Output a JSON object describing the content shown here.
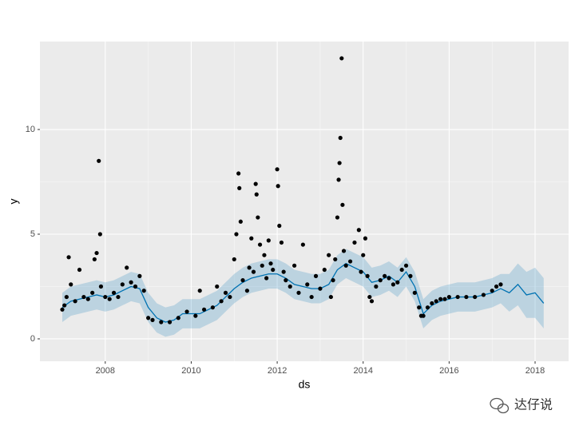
{
  "chart_data": {
    "type": "forecast",
    "xlabel": "ds",
    "ylabel": "y",
    "xlim": [
      2006.48,
      2018.78
    ],
    "xticks": [
      2008,
      2010,
      2012,
      2014,
      2016,
      2018
    ],
    "ylim": [
      -1.07,
      14.2
    ],
    "yticks": [
      0,
      5,
      10
    ],
    "grid": true,
    "watermark": "达仔说",
    "series": [
      {
        "type": "scatter",
        "color": "#000000",
        "x": [
          2007.0,
          2007.05,
          2007.1,
          2007.15,
          2007.2,
          2007.3,
          2007.4,
          2007.5,
          2007.6,
          2007.7,
          2007.75,
          2007.8,
          2007.85,
          2007.88,
          2007.9,
          2008.0,
          2008.1,
          2008.2,
          2008.3,
          2008.4,
          2008.5,
          2008.6,
          2008.7,
          2008.8,
          2008.9,
          2009.0,
          2009.1,
          2009.3,
          2009.5,
          2009.7,
          2009.9,
          2010.1,
          2010.2,
          2010.3,
          2010.5,
          2010.6,
          2010.7,
          2010.8,
          2010.9,
          2011.0,
          2011.05,
          2011.1,
          2011.12,
          2011.15,
          2011.2,
          2011.3,
          2011.35,
          2011.4,
          2011.45,
          2011.5,
          2011.52,
          2011.55,
          2011.6,
          2011.65,
          2011.7,
          2011.75,
          2011.8,
          2011.85,
          2011.9,
          2012.0,
          2012.02,
          2012.05,
          2012.1,
          2012.15,
          2012.2,
          2012.3,
          2012.4,
          2012.5,
          2012.6,
          2012.7,
          2012.8,
          2012.9,
          2013.0,
          2013.1,
          2013.2,
          2013.25,
          2013.3,
          2013.35,
          2013.4,
          2013.43,
          2013.45,
          2013.47,
          2013.5,
          2013.52,
          2013.55,
          2013.6,
          2013.7,
          2013.8,
          2013.9,
          2013.95,
          2014.0,
          2014.05,
          2014.1,
          2014.15,
          2014.2,
          2014.3,
          2014.4,
          2014.5,
          2014.6,
          2014.7,
          2014.8,
          2014.9,
          2015.0,
          2015.1,
          2015.2,
          2015.3,
          2015.35,
          2015.4,
          2015.5,
          2015.6,
          2015.7,
          2015.8,
          2015.9,
          2016.0,
          2016.2,
          2016.4,
          2016.6,
          2016.8,
          2017.0,
          2017.1,
          2017.2
        ],
        "values": [
          1.4,
          1.6,
          2.0,
          3.9,
          2.6,
          1.8,
          3.3,
          2.0,
          1.9,
          2.2,
          3.8,
          4.1,
          8.5,
          5.0,
          2.5,
          2.0,
          1.9,
          2.2,
          2.0,
          2.6,
          3.4,
          2.7,
          2.5,
          3.0,
          2.3,
          1.0,
          0.9,
          0.8,
          0.8,
          1.0,
          1.3,
          1.1,
          2.3,
          1.4,
          1.5,
          2.5,
          1.8,
          2.2,
          2.0,
          3.8,
          5.0,
          7.9,
          7.2,
          5.6,
          2.8,
          2.3,
          3.4,
          4.8,
          3.2,
          7.4,
          6.9,
          5.8,
          4.5,
          3.5,
          4.0,
          2.9,
          4.7,
          3.6,
          3.3,
          8.1,
          7.3,
          5.4,
          4.6,
          3.2,
          2.8,
          2.5,
          3.5,
          2.2,
          4.5,
          2.6,
          2.0,
          3.0,
          2.4,
          3.3,
          4.0,
          2.0,
          2.8,
          3.8,
          5.8,
          7.6,
          8.4,
          9.6,
          13.4,
          6.4,
          4.2,
          3.5,
          3.7,
          4.6,
          5.2,
          3.2,
          4.0,
          4.8,
          3.0,
          2.0,
          1.8,
          2.5,
          2.8,
          3.0,
          2.9,
          2.6,
          2.7,
          3.3,
          3.5,
          3.0,
          2.2,
          1.5,
          1.1,
          1.1,
          1.5,
          1.7,
          1.8,
          1.9,
          1.9,
          2.0,
          2.0,
          2.0,
          2.0,
          2.1,
          2.3,
          2.5,
          2.6
        ]
      },
      {
        "type": "line",
        "color": "#0072B2",
        "band_color": "#0072B2",
        "x": [
          2007.0,
          2007.2,
          2007.4,
          2007.6,
          2007.8,
          2008.0,
          2008.2,
          2008.4,
          2008.6,
          2008.8,
          2009.0,
          2009.2,
          2009.4,
          2009.6,
          2009.8,
          2010.0,
          2010.2,
          2010.4,
          2010.6,
          2010.8,
          2011.0,
          2011.2,
          2011.4,
          2011.6,
          2011.8,
          2012.0,
          2012.2,
          2012.4,
          2012.6,
          2012.8,
          2013.0,
          2013.2,
          2013.4,
          2013.6,
          2013.8,
          2014.0,
          2014.2,
          2014.4,
          2014.6,
          2014.8,
          2015.0,
          2015.2,
          2015.4,
          2015.6,
          2015.8,
          2016.0,
          2016.2,
          2016.4,
          2016.6,
          2016.8,
          2017.0,
          2017.2,
          2017.4,
          2017.6,
          2017.8,
          2018.0,
          2018.2
        ],
        "values": [
          1.5,
          1.8,
          1.9,
          2.0,
          2.1,
          2.0,
          2.1,
          2.3,
          2.5,
          2.4,
          1.5,
          1.0,
          0.8,
          0.9,
          1.2,
          1.2,
          1.2,
          1.4,
          1.6,
          2.0,
          2.4,
          2.7,
          2.9,
          3.0,
          3.1,
          3.1,
          2.9,
          2.6,
          2.5,
          2.4,
          2.4,
          2.6,
          3.3,
          3.6,
          3.4,
          3.2,
          2.7,
          2.8,
          3.0,
          2.7,
          3.2,
          2.5,
          1.2,
          1.6,
          1.8,
          1.9,
          2.0,
          2.0,
          2.0,
          2.1,
          2.2,
          2.4,
          2.2,
          2.6,
          2.1,
          2.2,
          1.7
        ],
        "lower": [
          0.8,
          1.1,
          1.2,
          1.3,
          1.4,
          1.3,
          1.4,
          1.6,
          1.8,
          1.7,
          0.8,
          0.3,
          0.1,
          0.2,
          0.5,
          0.5,
          0.5,
          0.7,
          0.9,
          1.3,
          1.7,
          2.0,
          2.2,
          2.3,
          2.4,
          2.4,
          2.2,
          1.9,
          1.8,
          1.7,
          1.7,
          1.9,
          2.6,
          2.9,
          2.7,
          2.5,
          2.0,
          2.1,
          2.3,
          2.0,
          2.5,
          1.8,
          0.5,
          0.9,
          1.1,
          1.2,
          1.3,
          1.3,
          1.3,
          1.4,
          1.5,
          1.7,
          1.3,
          1.6,
          1.0,
          1.0,
          0.5
        ],
        "upper": [
          2.2,
          2.5,
          2.6,
          2.7,
          2.8,
          2.7,
          2.8,
          3.0,
          3.2,
          3.1,
          2.2,
          1.7,
          1.5,
          1.6,
          1.9,
          1.9,
          1.9,
          2.1,
          2.3,
          2.7,
          3.1,
          3.4,
          3.6,
          3.7,
          3.8,
          3.8,
          3.6,
          3.3,
          3.2,
          3.1,
          3.1,
          3.3,
          4.0,
          4.3,
          4.1,
          3.9,
          3.4,
          3.5,
          3.7,
          3.4,
          3.9,
          3.2,
          1.9,
          2.3,
          2.5,
          2.6,
          2.7,
          2.7,
          2.7,
          2.8,
          2.9,
          3.1,
          3.1,
          3.6,
          3.2,
          3.4,
          2.9
        ]
      }
    ]
  }
}
